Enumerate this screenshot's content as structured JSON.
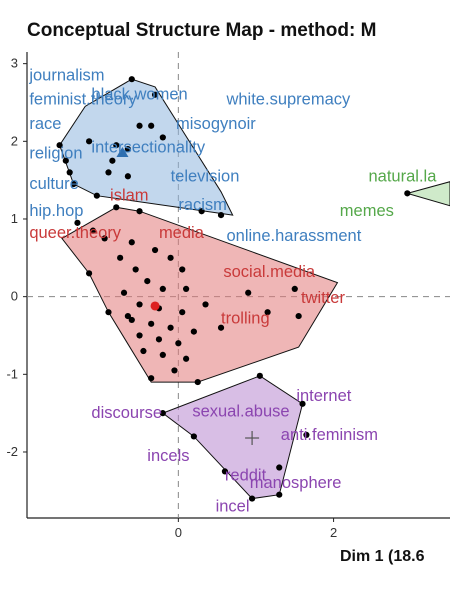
{
  "chart_data": {
    "type": "scatter",
    "title": "Conceptual Structure Map - method: M",
    "xlabel": "Dim 1 (18.6",
    "ylabel": "",
    "xlim": [
      -1.95,
      3.5
    ],
    "ylim": [
      -2.85,
      3.15
    ],
    "x_ticks": [
      0,
      2
    ],
    "y_ticks": [
      3,
      2,
      1,
      0,
      -1,
      -2
    ],
    "grid": false,
    "reference_lines": [
      0,
      0
    ],
    "clusters": [
      {
        "name": "blue",
        "color": "#3f7fbf",
        "fill": "#8fb6df",
        "hull": [
          [
            -1.53,
            1.95
          ],
          [
            -1.2,
            2.45
          ],
          [
            -0.6,
            2.8
          ],
          [
            -0.3,
            2.7
          ],
          [
            0.55,
            1.35
          ],
          [
            0.7,
            1.05
          ],
          [
            -1.05,
            1.3
          ],
          [
            -1.35,
            1.45
          ]
        ],
        "centroid": [
          -0.72,
          1.85
        ],
        "points": [
          [
            -1.53,
            1.95
          ],
          [
            -0.6,
            2.8
          ],
          [
            -0.3,
            2.6
          ],
          [
            -0.35,
            2.2
          ],
          [
            -0.2,
            2.05
          ],
          [
            -0.5,
            2.2
          ],
          [
            -0.65,
            1.9
          ],
          [
            -0.85,
            1.75
          ],
          [
            -0.8,
            1.95
          ],
          [
            -1.45,
            1.75
          ],
          [
            -1.4,
            1.6
          ],
          [
            -1.35,
            1.45
          ],
          [
            -1.05,
            1.3
          ],
          [
            -0.65,
            1.55
          ],
          [
            0.3,
            1.1
          ],
          [
            0.55,
            1.05
          ],
          [
            -1.15,
            2.0
          ],
          [
            -0.9,
            1.6
          ]
        ],
        "labels": [
          {
            "text": "journalism",
            "x": -1.92,
            "y": 2.85
          },
          {
            "text": "feminist.theory",
            "x": -1.92,
            "y": 2.54
          },
          {
            "text": "black.women",
            "x": -1.12,
            "y": 2.6
          },
          {
            "text": "white.supremacy",
            "x": 0.62,
            "y": 2.54
          },
          {
            "text": "race",
            "x": -1.92,
            "y": 2.22
          },
          {
            "text": "misogynoir",
            "x": -0.03,
            "y": 2.22
          },
          {
            "text": "intersectionality",
            "x": -1.12,
            "y": 1.92
          },
          {
            "text": "religion",
            "x": -1.92,
            "y": 1.84
          },
          {
            "text": "television",
            "x": -0.1,
            "y": 1.55
          },
          {
            "text": "culture",
            "x": -1.92,
            "y": 1.45
          },
          {
            "text": "racism",
            "x": 0.0,
            "y": 1.18
          },
          {
            "text": "hip.hop",
            "x": -1.92,
            "y": 1.1
          },
          {
            "text": "online.harassment",
            "x": 0.62,
            "y": 0.78
          }
        ]
      },
      {
        "name": "red",
        "color": "#c93a3a",
        "fill": "#e27a7a",
        "hull": [
          [
            -1.5,
            0.75
          ],
          [
            -0.8,
            1.15
          ],
          [
            -0.5,
            1.1
          ],
          [
            2.05,
            0.18
          ],
          [
            1.55,
            -0.65
          ],
          [
            0.25,
            -1.1
          ],
          [
            -0.35,
            -1.1
          ],
          [
            -0.9,
            -0.2
          ],
          [
            -1.15,
            0.3
          ]
        ],
        "centroid": [
          -0.3,
          -0.12
        ],
        "points": [
          [
            -0.8,
            1.15
          ],
          [
            -0.5,
            1.1
          ],
          [
            -1.3,
            0.95
          ],
          [
            -1.1,
            0.85
          ],
          [
            -0.95,
            0.75
          ],
          [
            -0.6,
            0.7
          ],
          [
            -0.3,
            0.6
          ],
          [
            -0.1,
            0.5
          ],
          [
            0.05,
            0.35
          ],
          [
            -0.75,
            0.5
          ],
          [
            -0.55,
            0.35
          ],
          [
            -0.4,
            0.2
          ],
          [
            -0.2,
            0.1
          ],
          [
            0.1,
            0.1
          ],
          [
            -0.7,
            0.05
          ],
          [
            -0.5,
            -0.1
          ],
          [
            -0.25,
            -0.15
          ],
          [
            0.05,
            -0.2
          ],
          [
            -0.6,
            -0.3
          ],
          [
            -0.35,
            -0.35
          ],
          [
            -0.1,
            -0.4
          ],
          [
            0.2,
            -0.45
          ],
          [
            -0.5,
            -0.5
          ],
          [
            -0.25,
            -0.55
          ],
          [
            0.0,
            -0.6
          ],
          [
            -0.45,
            -0.7
          ],
          [
            -0.2,
            -0.75
          ],
          [
            0.1,
            -0.8
          ],
          [
            -0.05,
            -0.95
          ],
          [
            -0.35,
            -1.05
          ],
          [
            0.25,
            -1.1
          ],
          [
            0.55,
            -0.4
          ],
          [
            0.9,
            0.05
          ],
          [
            1.15,
            -0.2
          ],
          [
            1.55,
            -0.25
          ],
          [
            1.5,
            0.1
          ],
          [
            -1.15,
            0.3
          ],
          [
            -0.9,
            -0.2
          ],
          [
            -0.65,
            -0.25
          ],
          [
            0.35,
            -0.1
          ]
        ],
        "labels": [
          {
            "text": "islam",
            "x": -0.88,
            "y": 1.3
          },
          {
            "text": "queer.theory",
            "x": -1.92,
            "y": 0.82
          },
          {
            "text": "media",
            "x": -0.25,
            "y": 0.82
          },
          {
            "text": "social.media",
            "x": 0.58,
            "y": 0.32
          },
          {
            "text": "twitter",
            "x": 1.58,
            "y": -0.02
          },
          {
            "text": "trolling",
            "x": 0.55,
            "y": -0.28
          }
        ]
      },
      {
        "name": "purple",
        "color": "#8b45b0",
        "fill": "#b888d0",
        "hull": [
          [
            -0.2,
            -1.5
          ],
          [
            1.05,
            -1.02
          ],
          [
            1.6,
            -1.38
          ],
          [
            1.3,
            -2.55
          ],
          [
            0.95,
            -2.6
          ],
          [
            0.2,
            -1.8
          ]
        ],
        "centroid": [
          0.95,
          -1.82
        ],
        "points": [
          [
            -0.2,
            -1.5
          ],
          [
            1.05,
            -1.02
          ],
          [
            1.6,
            -1.38
          ],
          [
            1.65,
            -1.78
          ],
          [
            1.3,
            -2.55
          ],
          [
            0.95,
            -2.6
          ],
          [
            0.2,
            -1.8
          ],
          [
            1.3,
            -2.2
          ],
          [
            0.6,
            -2.25
          ]
        ],
        "labels": [
          {
            "text": "internet",
            "x": 1.52,
            "y": -1.28
          },
          {
            "text": "discourse",
            "x": -1.12,
            "y": -1.5
          },
          {
            "text": "sexual.abuse",
            "x": 0.18,
            "y": -1.48
          },
          {
            "text": "anti.feminism",
            "x": 1.32,
            "y": -1.78
          },
          {
            "text": "incels",
            "x": -0.4,
            "y": -2.05
          },
          {
            "text": "reddit",
            "x": 0.6,
            "y": -2.3
          },
          {
            "text": "manosphere",
            "x": 0.92,
            "y": -2.4
          },
          {
            "text": "incel",
            "x": 0.48,
            "y": -2.7
          }
        ]
      },
      {
        "name": "green",
        "color": "#55a84a",
        "fill": "#a8d89e",
        "hull": [
          [
            2.95,
            1.33
          ],
          [
            3.5,
            1.48
          ],
          [
            3.5,
            1.17
          ]
        ],
        "points": [
          [
            2.95,
            1.33
          ]
        ],
        "labels": [
          {
            "text": "natural.la",
            "x": 2.45,
            "y": 1.55
          },
          {
            "text": "memes",
            "x": 2.08,
            "y": 1.1
          }
        ]
      }
    ]
  }
}
